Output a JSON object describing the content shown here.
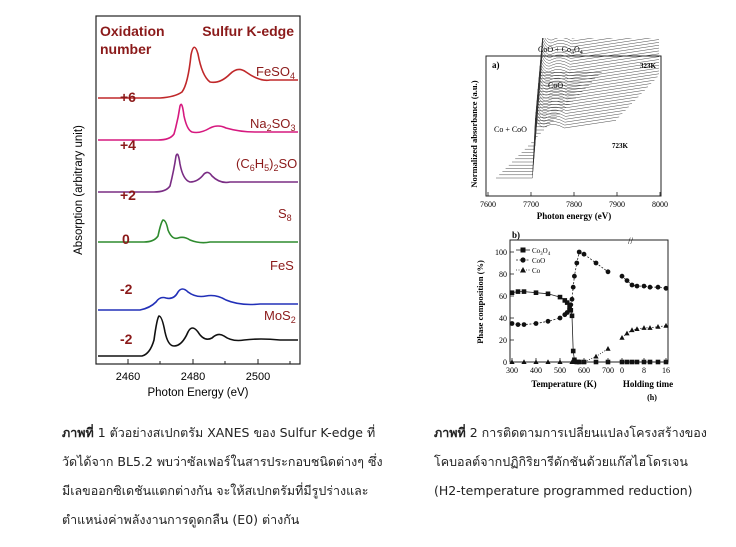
{
  "figure1": {
    "header_left": "Oxidation",
    "header_left2": "number",
    "header_right": "Sulfur K-edge",
    "ylabel": "Absorption (arbitrary unit)",
    "xlabel": "Photon Energy (eV)",
    "xticks": [
      "2460",
      "2480",
      "2500"
    ],
    "colors": {
      "FeSO4": "#c0282a",
      "Na2SO3": "#d6197f",
      "org": "#7a2d84",
      "S8": "#b0198a",
      "S8curve": "#2e8b2e",
      "FeS": "#2230b8",
      "MoS2": "#111111",
      "label": "#8b1a1a"
    },
    "rows": [
      {
        "ox": "+6",
        "compound": "FeSO",
        "sub": "4",
        "tail": ""
      },
      {
        "ox": "+4",
        "compound": "Na",
        "sub": "2",
        "tail": "SO",
        "sub2": "3"
      },
      {
        "ox": "+2",
        "compound": "(C",
        "sub": "6",
        "tail": "H",
        "sub2": "5",
        "tail2": ")",
        "sub3": "2",
        "tail3": "SO"
      },
      {
        "ox": "0",
        "compound": "S",
        "sub": "8",
        "tail": ""
      },
      {
        "ox": "-2",
        "compound": "FeS",
        "sub": "",
        "tail": ""
      },
      {
        "ox": "-2",
        "compound": "MoS",
        "sub": "2",
        "tail": ""
      }
    ]
  },
  "figure2a": {
    "panel": "a)",
    "ylabel": "Normalized absorbance (a.u.)",
    "xlabel": "Photon energy (eV)",
    "xticks": [
      "7600",
      "7700",
      "7800",
      "7900",
      "8000"
    ],
    "labels": {
      "top": "CoO + Co",
      "top_sub": "3",
      "top_tail": "O",
      "top_sub2": "4",
      "coo": "CoO",
      "co_coo": "Co + CoO",
      "t_high": "323K",
      "t_low": "723K"
    }
  },
  "figure2b": {
    "panel": "b)",
    "ylabel": "Phase composition (%)",
    "xlabel": "Temperature (K)",
    "xlabel2": "Holding time",
    "xlabel2_unit": "(h)",
    "yticks": [
      "0",
      "20",
      "40",
      "60",
      "80",
      "100"
    ],
    "xticks": [
      "300",
      "400",
      "500",
      "600",
      "700",
      "0",
      "8",
      "16"
    ],
    "legend": [
      {
        "name": "Co",
        "sub": "3",
        "tail": "O",
        "sub2": "4",
        "marker": "square"
      },
      {
        "name": "CoO",
        "marker": "circle"
      },
      {
        "name": "Co",
        "marker": "triangle"
      }
    ]
  },
  "chart_data": [
    {
      "type": "line",
      "title": "Phase composition",
      "xlabel": "Temperature (K) / Holding time (h)",
      "ylabel": "Phase composition (%)",
      "ylim": [
        0,
        100
      ],
      "series": [
        {
          "name": "Co3O4",
          "x": [
            300,
            325,
            350,
            400,
            450,
            500,
            520,
            530,
            540,
            545,
            550,
            555,
            560,
            570,
            580,
            600,
            650,
            700
          ],
          "values": [
            63,
            64,
            64,
            63,
            62,
            59,
            56,
            54,
            50,
            47,
            42,
            10,
            2,
            0,
            0,
            0,
            0,
            0
          ]
        },
        {
          "name": "CoO",
          "x": [
            300,
            325,
            350,
            400,
            450,
            500,
            520,
            530,
            540,
            545,
            550,
            555,
            560,
            570,
            580,
            600,
            650,
            700
          ],
          "values": [
            35,
            34,
            34,
            35,
            37,
            40,
            43,
            45,
            48,
            52,
            57,
            68,
            78,
            90,
            100,
            98,
            90,
            82
          ]
        },
        {
          "name": "Co",
          "x": [
            300,
            350,
            400,
            450,
            500,
            550,
            560,
            570,
            580,
            600,
            650,
            700
          ],
          "values": [
            0,
            0,
            0,
            0,
            0,
            0,
            0,
            0,
            0,
            0,
            5,
            12
          ]
        }
      ]
    }
  ],
  "caption1": {
    "label": "ภาพที่",
    "lines": [
      " 1 ตัวอย่างสเปกตรัม XANES ของ Sulfur K-edge ที่",
      "วัดได้จาก BL5.2 พบว่าซัลเฟอร์ในสารประกอบชนิดต่างๆ ซึ่ง",
      "มีเลขออกซิเดชันแตกต่างกัน จะให้สเปกตรัมที่มีรูปร่างและ",
      "ตำแหน่งค่าพลังงานการดูดกลืน (E0) ต่างกัน"
    ]
  },
  "caption2": {
    "label": "ภาพที่",
    "lines": [
      " 2 การติดตามการเปลี่ยนแปลงโครงสร้างของ",
      "โคบอลต์จากปฏิกิริยารีดักชันด้วยแก๊สไฮโดรเจน",
      "(H2-temperature programmed reduction)"
    ]
  }
}
